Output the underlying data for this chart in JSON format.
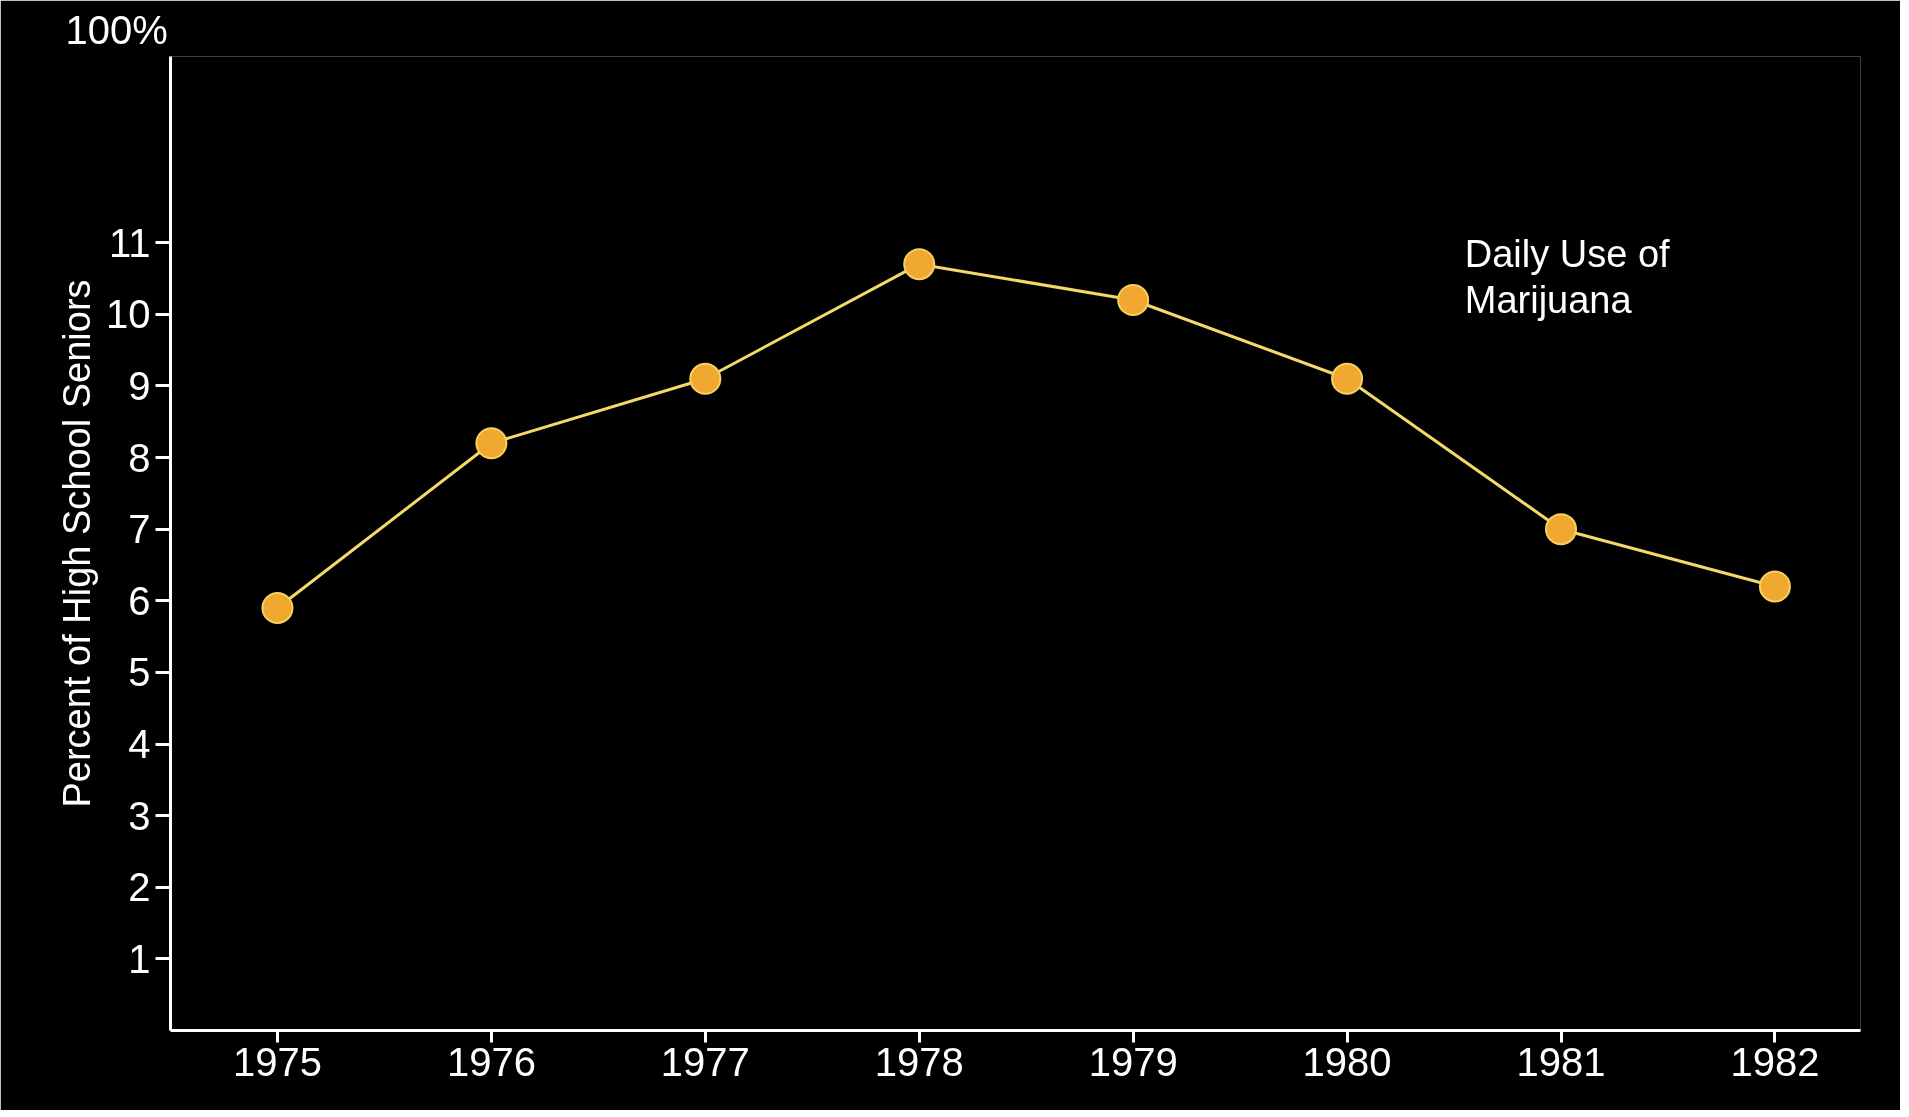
{
  "chart_data": {
    "type": "line",
    "ylabel": "Percent of High School Seniors",
    "x": [
      1975,
      1976,
      1977,
      1978,
      1979,
      1980,
      1981,
      1982
    ],
    "series": [
      {
        "name": "Daily Use of\nMarijuana",
        "color": "#f2d96a",
        "values": [
          5.9,
          8.2,
          9.1,
          10.7,
          10.2,
          9.1,
          7.0,
          6.2
        ]
      }
    ],
    "marker": "circle",
    "xlim": [
      1974.5,
      1982.4
    ],
    "ylim": [
      0,
      13.6
    ],
    "xticks": [
      1975,
      1976,
      1977,
      1978,
      1979,
      1980,
      1981,
      1982
    ],
    "yticks": [
      1,
      2,
      3,
      4,
      5,
      6,
      7,
      8,
      9,
      10,
      11
    ],
    "annotations": [
      "100%"
    ],
    "grid": false
  }
}
